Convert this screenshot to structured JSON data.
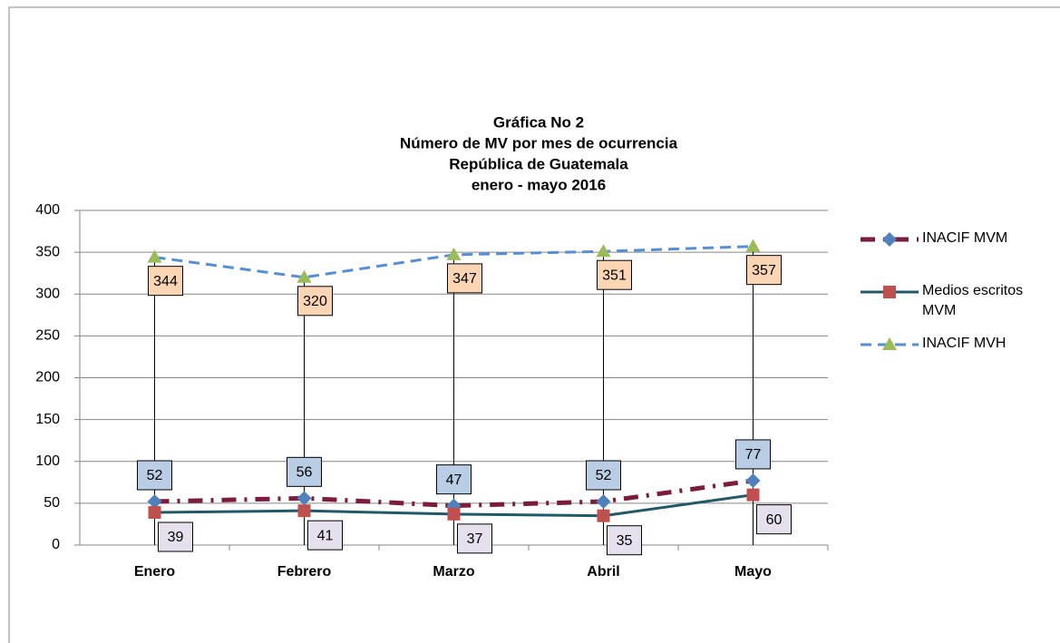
{
  "chart_data": {
    "type": "line",
    "title": [
      "Gráfica No 2",
      "Número de MV por mes de ocurrencia",
      "República de Guatemala",
      "enero  - mayo 2016"
    ],
    "categories": [
      "Enero",
      "Febrero",
      "Marzo",
      "Abril",
      "Mayo"
    ],
    "series": [
      {
        "name": "INACIF MVM",
        "color": "#7b1c3c",
        "marker_color": "#4f81bd",
        "marker": "diamond",
        "dash": "dash-dot",
        "label_color": "#b9cde5",
        "label_position": "above",
        "values": [
          52,
          56,
          47,
          52,
          77
        ]
      },
      {
        "name": "Medios escritos MVM",
        "color": "#215968",
        "marker_color": "#c0504d",
        "marker": "square",
        "dash": "solid",
        "label_color": "#e6e0ec",
        "label_position": "below",
        "values": [
          39,
          41,
          37,
          35,
          60
        ]
      },
      {
        "name": "INACIF MVH",
        "color": "#558ed5",
        "marker_color": "#9bbb59",
        "marker": "triangle",
        "dash": "dashed",
        "label_color": "#fcd5b5",
        "label_position": "below",
        "values": [
          344,
          320,
          347,
          351,
          357
        ]
      }
    ],
    "ylim": [
      0,
      400
    ],
    "yticks": [
      0,
      50,
      100,
      150,
      200,
      250,
      300,
      350,
      400
    ],
    "grid": true,
    "drop_lines": true,
    "legend": "right"
  }
}
